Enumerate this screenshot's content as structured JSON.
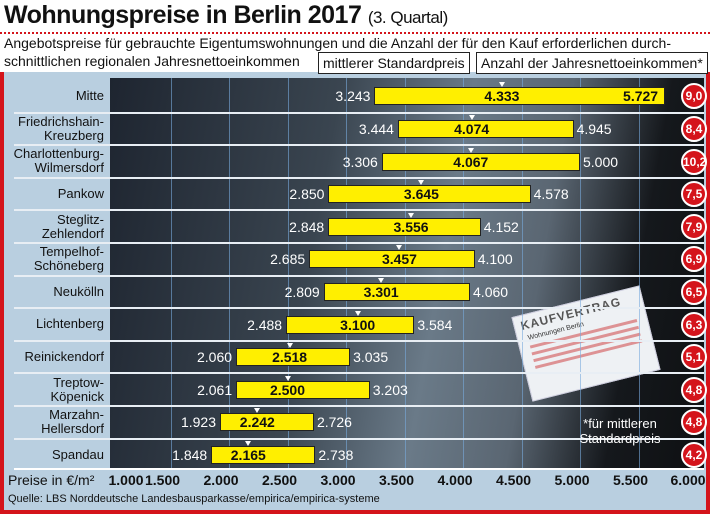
{
  "header": {
    "title": "Wohnungspreise in Berlin 2017",
    "subtitle": "(3. Quartal)",
    "description": "Angebotspreise für gebrauchte Eigentumswohnungen und die Anzahl der für den Kauf erforderlichen durch-schnittlichen regionalen Jahresnettoeinkommen"
  },
  "callouts": {
    "median": "mittlerer Standardpreis",
    "incomes": "Anzahl der Jahresnettoeinkommen*"
  },
  "background_photo": {
    "doc_title": "KAUFVERTRAG",
    "doc_subtitle": "Wohnungen Berlin"
  },
  "footnote": "*für mittleren Standardpreis",
  "source": "Quelle: LBS Norddeutsche Landesbausparkasse/empirica/empirica-systeme",
  "colors": {
    "bar": "#ffef00",
    "accent": "#d4141b",
    "label_bg": "#b9cfe0"
  },
  "chart_data": {
    "type": "bar",
    "orientation": "horizontal-range",
    "xlabel": "Preise in €/m²",
    "xlim": [
      1000,
      6000
    ],
    "xticks": [
      "1.000",
      "1.500",
      "2.000",
      "2.500",
      "3.000",
      "3.500",
      "4.000",
      "4.500",
      "5.000",
      "5.500",
      "6.000"
    ],
    "grid": true,
    "categories": [
      "Mitte",
      "Friedrichshain-Kreuzberg",
      "Charlottenburg-Wilmersdorf",
      "Pankow",
      "Steglitz-Zehlendorf",
      "Tempelhof-Schöneberg",
      "Neukölln",
      "Lichtenberg",
      "Reinickendorf",
      "Treptow-Köpenick",
      "Marzahn-Hellersdorf",
      "Spandau"
    ],
    "category_lines": [
      [
        "Mitte"
      ],
      [
        "Friedrichshain-",
        "Kreuzberg"
      ],
      [
        "Charlottenburg-",
        "Wilmersdorf"
      ],
      [
        "Pankow"
      ],
      [
        "Steglitz-",
        "Zehlendorf"
      ],
      [
        "Tempelhof-",
        "Schöneberg"
      ],
      [
        "Neukölln"
      ],
      [
        "Lichtenberg"
      ],
      [
        "Reinickendorf"
      ],
      [
        "Treptow-",
        "Köpenick"
      ],
      [
        "Marzahn-",
        "Hellersdorf"
      ],
      [
        "Spandau"
      ]
    ],
    "low": [
      3243,
      3444,
      3306,
      2850,
      2848,
      2685,
      2809,
      2488,
      2060,
      2061,
      1923,
      1848
    ],
    "median": [
      4333,
      4074,
      4067,
      3645,
      3556,
      3457,
      3301,
      3100,
      2518,
      2500,
      2242,
      2165
    ],
    "high": [
      5727,
      4945,
      5000,
      4578,
      4152,
      4100,
      4060,
      3584,
      3035,
      3203,
      2726,
      2738
    ],
    "low_labels": [
      "3.243",
      "3.444",
      "3.306",
      "2.850",
      "2.848",
      "2.685",
      "2.809",
      "2.488",
      "2.060",
      "2.061",
      "1.923",
      "1.848"
    ],
    "median_labels": [
      "4.333",
      "4.074",
      "4.067",
      "3.645",
      "3.556",
      "3.457",
      "3.301",
      "3.100",
      "2.518",
      "2.500",
      "2.242",
      "2.165"
    ],
    "high_labels": [
      "5.727",
      "4.945",
      "5.000",
      "4.578",
      "4.152",
      "4.100",
      "4.060",
      "3.584",
      "3.035",
      "3.203",
      "2.726",
      "2.738"
    ],
    "incomes": [
      "9,0",
      "8,4",
      "10,2",
      "7,5",
      "7,9",
      "6,9",
      "6,5",
      "6,3",
      "5,1",
      "4,8",
      "4,8",
      "4,2"
    ]
  }
}
